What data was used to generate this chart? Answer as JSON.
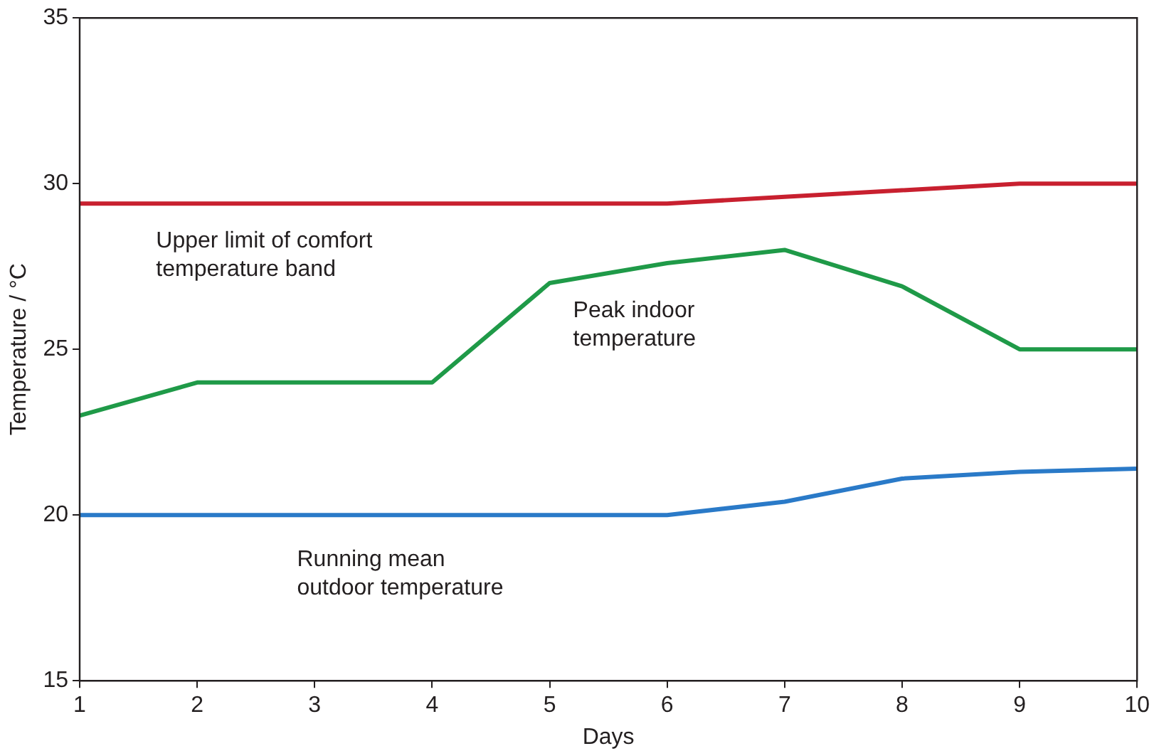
{
  "chart_data": {
    "type": "line",
    "xlabel": "Days",
    "ylabel": "Temperature / °C",
    "x": [
      1,
      2,
      3,
      4,
      5,
      6,
      7,
      8,
      9,
      10
    ],
    "series": [
      {
        "name": "Upper limit of comfort temperature band",
        "color": "#c8202f",
        "values": [
          29.4,
          29.4,
          29.4,
          29.4,
          29.4,
          29.4,
          29.6,
          29.8,
          30.0,
          30.0
        ]
      },
      {
        "name": "Peak indoor temperature",
        "color": "#1f9a48",
        "values": [
          23.0,
          24.0,
          24.0,
          24.0,
          27.0,
          27.6,
          28.0,
          26.9,
          25.0,
          25.0
        ]
      },
      {
        "name": "Running mean outdoor temperature",
        "color": "#2a7ac8",
        "values": [
          20.0,
          20.0,
          20.0,
          20.0,
          20.0,
          20.0,
          20.4,
          21.1,
          21.3,
          21.4
        ]
      }
    ],
    "xlim": [
      1,
      10
    ],
    "xticks": [
      1,
      2,
      3,
      4,
      5,
      6,
      7,
      8,
      9,
      10
    ],
    "ylim": [
      15,
      35
    ],
    "yticks": [
      15,
      20,
      25,
      30,
      35
    ],
    "grid": false,
    "legend": false,
    "marker": "none",
    "line_style": "solid"
  }
}
